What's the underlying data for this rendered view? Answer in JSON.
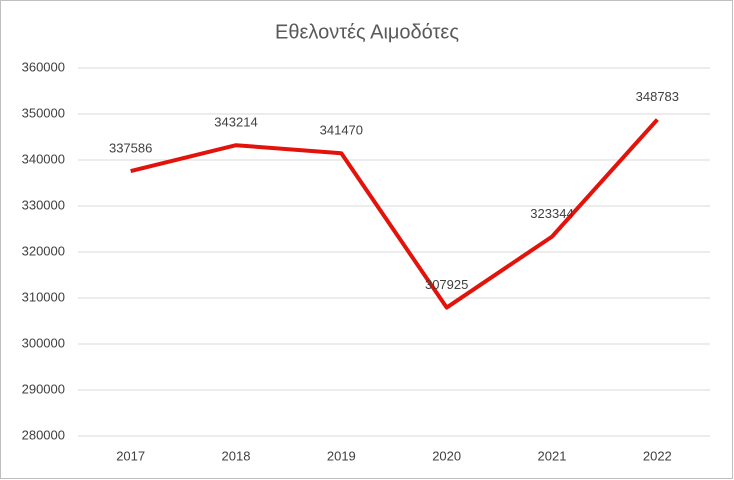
{
  "chart_data": {
    "type": "line",
    "title": "Εθελοντές Αιμοδότες",
    "categories": [
      "2017",
      "2018",
      "2019",
      "2020",
      "2021",
      "2022"
    ],
    "values": [
      337586,
      343214,
      341470,
      307925,
      323344,
      348783
    ],
    "color": "#e3120b",
    "ylim": [
      280000,
      360000
    ],
    "yticks": [
      280000,
      290000,
      300000,
      310000,
      320000,
      330000,
      340000,
      350000,
      360000
    ],
    "grid": true
  }
}
